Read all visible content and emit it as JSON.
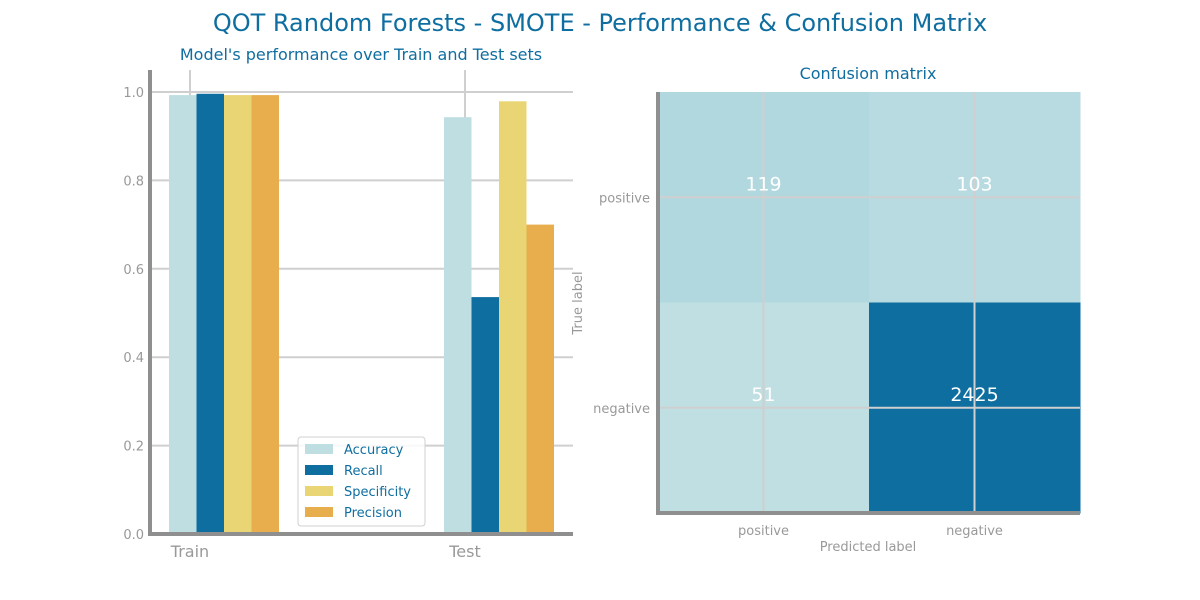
{
  "figure": {
    "title": "QOT Random Forests - SMOTE - Performance & Confusion Matrix",
    "title_color": "#0f6ea0"
  },
  "colors": {
    "text_blue": "#0f6ea0",
    "tick_gray": "#999999",
    "axis_gray": "#8f8f8f",
    "grid_gray": "#cfcfcf"
  },
  "chart_data": [
    {
      "type": "bar",
      "title": "Model's performance over Train and Test sets",
      "categories": [
        "Train",
        "Test"
      ],
      "series": [
        {
          "name": "Accuracy",
          "values": [
            0.993,
            0.943
          ],
          "color": "#bfdee2"
        },
        {
          "name": "Recall",
          "values": [
            0.996,
            0.536
          ],
          "color": "#0f6ea0"
        },
        {
          "name": "Specificity",
          "values": [
            0.993,
            0.979
          ],
          "color": "#ead574"
        },
        {
          "name": "Precision",
          "values": [
            0.993,
            0.7
          ],
          "color": "#e8ae4d"
        }
      ],
      "ylim": [
        0,
        1.0
      ],
      "yticks": [
        "0.0",
        "0.2",
        "0.4",
        "0.6",
        "0.8",
        "1.0"
      ],
      "grid": true,
      "legend_position": "bottom-center"
    },
    {
      "type": "heatmap",
      "title": "Confusion matrix",
      "x_categories": [
        "positive",
        "negative"
      ],
      "y_categories": [
        "positive",
        "negative"
      ],
      "xlabel": "Predicted label",
      "ylabel": "True label",
      "matrix": [
        [
          119,
          103
        ],
        [
          51,
          2425
        ]
      ],
      "cell_colors": [
        [
          "#b1d8df",
          "#b7dbe0"
        ],
        [
          "#bfdfe2",
          "#0f6ea0"
        ]
      ],
      "grid": true
    }
  ]
}
